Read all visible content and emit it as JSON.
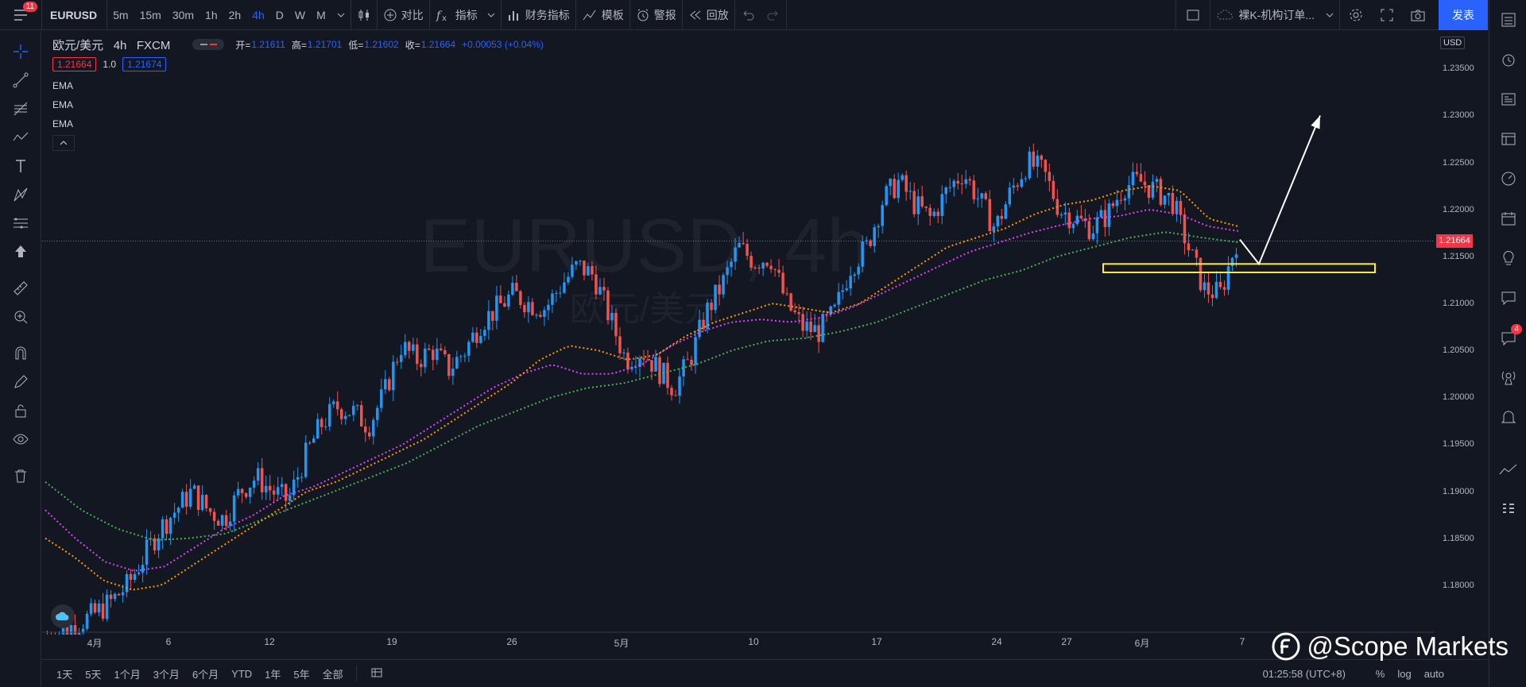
{
  "toolbar": {
    "notifications_count": "11",
    "symbol": "EURUSD",
    "intervals": [
      "5m",
      "15m",
      "30m",
      "1h",
      "2h",
      "4h",
      "D",
      "W",
      "M"
    ],
    "active_interval": "4h",
    "compare_label": "对比",
    "indicators_label": "指标",
    "financials_label": "财务指标",
    "templates_label": "模板",
    "alert_label": "警报",
    "replay_label": "回放",
    "layout_name": "裸K-机构订单...",
    "publish_label": "发表"
  },
  "legend": {
    "title": "欧元/美元",
    "interval": "4h",
    "source": "FXCM",
    "open_label": "开=",
    "open_value": "1.21611",
    "high_label": "高=",
    "high_value": "1.21701",
    "low_label": "低=",
    "low_value": "1.21602",
    "close_label": "收=",
    "close_value": "1.21664",
    "change_value": "+0.00053 (+0.04%)",
    "bid_price": "1.21664",
    "spread": "1.0",
    "ask_price": "1.21674",
    "indicators": [
      "EMA",
      "EMA",
      "EMA"
    ]
  },
  "watermark": {
    "symbol_interval": "EURUSD, 4h",
    "name": "欧元/美元"
  },
  "price_axis": {
    "currency": "USD",
    "current_price": "1.21664",
    "labels": [
      "1.23500",
      "1.23000",
      "1.22500",
      "1.22000",
      "1.21500",
      "1.21000",
      "1.20500",
      "1.20000",
      "1.19500",
      "1.19000",
      "1.18500",
      "1.18000"
    ]
  },
  "time_axis": {
    "labels": [
      "4月",
      "6",
      "12",
      "19",
      "26",
      "5月",
      "10",
      "17",
      "24",
      "27",
      "6月",
      "7"
    ]
  },
  "bottom": {
    "ranges": [
      "1天",
      "5天",
      "1个月",
      "3个月",
      "6个月",
      "YTD",
      "1年",
      "5年",
      "全部"
    ],
    "clock": "01:25:58 (UTC+8)",
    "scale_percent": "%",
    "scale_log": "log",
    "scale_auto": "auto"
  },
  "brand": {
    "text": "@Scope Markets"
  },
  "sidebar": {
    "chat_badge": "4"
  },
  "colors": {
    "background": "#131722",
    "up": "#2196f3",
    "down": "#ef5350",
    "ema_fast": "#ff9800",
    "ema_mid": "#e040fb",
    "ema_slow": "#4caf50",
    "zone": "#ffeb3b",
    "accent": "#2962ff",
    "current_price": "#f23645"
  },
  "chart_data": {
    "type": "candlestick",
    "symbol": "EURUSD",
    "interval": "4h",
    "ylim": [
      1.175,
      1.239
    ],
    "x_labels": [
      "4月",
      "6",
      "12",
      "19",
      "26",
      "5月",
      "10",
      "17",
      "24",
      "27",
      "6月",
      "7"
    ],
    "close_path": [
      1.1745,
      1.1752,
      1.176,
      1.177,
      1.1783,
      1.18,
      1.183,
      1.186,
      1.188,
      1.19,
      1.188,
      1.187,
      1.19,
      1.1915,
      1.19,
      1.189,
      1.1935,
      1.197,
      1.199,
      1.1985,
      1.197,
      1.2005,
      1.2055,
      1.204,
      1.205,
      1.203,
      1.205,
      1.208,
      1.2095,
      1.211,
      1.21,
      1.2095,
      1.212,
      1.214,
      1.213,
      1.2085,
      1.204,
      1.205,
      1.203,
      1.201,
      1.204,
      1.209,
      1.212,
      1.216,
      1.2145,
      1.215,
      1.21,
      1.2075,
      1.207,
      1.209,
      1.214,
      1.216,
      1.221,
      1.223,
      1.2205,
      1.219,
      1.222,
      1.224,
      1.221,
      1.218,
      1.222,
      1.225,
      1.224,
      1.22,
      1.219,
      1.218,
      1.2195,
      1.2225,
      1.223,
      1.222,
      1.221,
      1.216,
      1.2115,
      1.211,
      1.2166
    ],
    "ema_fast_path": [
      1.185,
      1.183,
      1.1805,
      1.1795,
      1.18,
      1.182,
      1.184,
      1.186,
      1.188,
      1.19,
      1.191,
      1.1925,
      1.194,
      1.1955,
      1.1975,
      1.1995,
      1.2015,
      1.204,
      1.2055,
      1.205,
      1.204,
      1.2045,
      1.2065,
      1.208,
      1.209,
      1.21,
      1.2095,
      1.209,
      1.21,
      1.212,
      1.214,
      1.216,
      1.217,
      1.218,
      1.2195,
      1.2205,
      1.221,
      1.222,
      1.2225,
      1.222,
      1.219,
      1.2182
    ],
    "ema_mid_path": [
      1.188,
      1.185,
      1.1825,
      1.1815,
      1.182,
      1.184,
      1.186,
      1.1875,
      1.1895,
      1.1905,
      1.192,
      1.1935,
      1.195,
      1.197,
      1.199,
      1.201,
      1.2025,
      1.2035,
      1.2025,
      1.2025,
      1.2035,
      1.2055,
      1.207,
      1.208,
      1.2083,
      1.208,
      1.2085,
      1.2095,
      1.211,
      1.2125,
      1.214,
      1.2155,
      1.2165,
      1.2175,
      1.2183,
      1.219,
      1.2193,
      1.22,
      1.2195,
      1.2182,
      1.2177
    ],
    "ema_slow_path": [
      1.191,
      1.188,
      1.186,
      1.1848,
      1.185,
      1.1855,
      1.187,
      1.1885,
      1.19,
      1.1915,
      1.193,
      1.195,
      1.197,
      1.1985,
      1.2,
      1.201,
      1.2015,
      1.2025,
      1.2035,
      1.205,
      1.206,
      1.2063,
      1.207,
      1.208,
      1.2095,
      1.211,
      1.2125,
      1.2135,
      1.215,
      1.216,
      1.217,
      1.2176,
      1.217,
      1.2165
    ],
    "zone": {
      "low": 1.2133,
      "high": 1.2142
    },
    "current_price": 1.21664,
    "projection": [
      [
        1.2168,
        1.2142
      ],
      [
        1.2142,
        1.23
      ]
    ]
  }
}
